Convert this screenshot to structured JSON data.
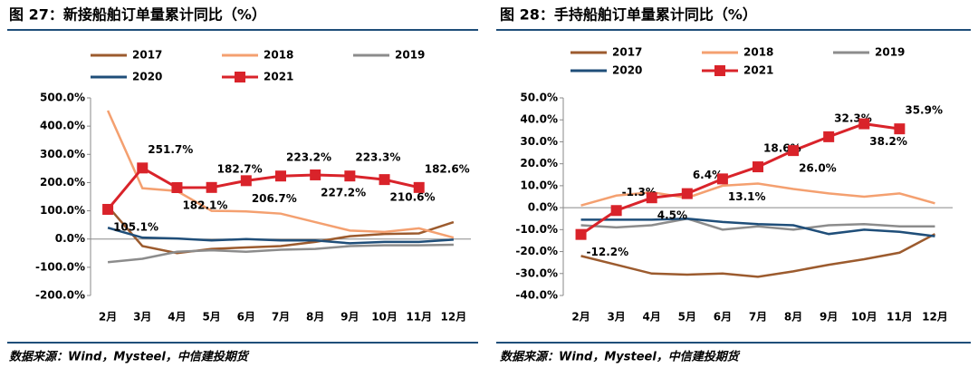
{
  "chart_data": [
    {
      "type": "line",
      "title": "图 27：新接船舶订单量累计同比（%）",
      "source": "数据来源：Wind，Mysteel，中信建投期货",
      "categories": [
        "2月",
        "3月",
        "4月",
        "5月",
        "6月",
        "7月",
        "8月",
        "9月",
        "10月",
        "11月",
        "12月"
      ],
      "ylim": [
        -200,
        500
      ],
      "yticks": [
        {
          "value": 500,
          "label": "500.0%"
        },
        {
          "value": 400,
          "label": "400.0%"
        },
        {
          "value": 300,
          "label": "300.0%"
        },
        {
          "value": 200,
          "label": "200.0%"
        },
        {
          "value": 100,
          "label": "100.0%"
        },
        {
          "value": 0,
          "label": "0.0%"
        },
        {
          "value": -100,
          "label": "-100.0%"
        },
        {
          "value": -200,
          "label": "-200.0%"
        }
      ],
      "series": [
        {
          "name": "2017",
          "color": "#9c5b2e",
          "values": [
            116,
            -25,
            -50,
            -35,
            -30,
            -25,
            -10,
            10,
            18,
            20,
            60
          ]
        },
        {
          "name": "2018",
          "color": "#f4a070",
          "values": [
            455,
            180,
            170,
            100,
            98,
            90,
            60,
            30,
            25,
            38,
            5
          ]
        },
        {
          "name": "2019",
          "color": "#8c8c8c",
          "values": [
            -82,
            -70,
            -45,
            -40,
            -45,
            -38,
            -35,
            -25,
            -22,
            -22,
            -20
          ]
        },
        {
          "name": "2020",
          "color": "#1f4e79",
          "values": [
            40,
            5,
            2,
            -5,
            0,
            -5,
            -5,
            -15,
            -10,
            -10,
            -2
          ]
        },
        {
          "name": "2021",
          "color": "#d9232a",
          "values": [
            105.1,
            251.7,
            182.1,
            182.7,
            206.7,
            223.2,
            227.2,
            223.3,
            210.6,
            182.6,
            null
          ],
          "value_labels": [
            "105.1%",
            "251.7%",
            "182.1%",
            "182.7%",
            "206.7%",
            "223.2%",
            "227.2%",
            "223.3%",
            "210.6%",
            "182.6%",
            null
          ]
        }
      ]
    },
    {
      "type": "line",
      "title": "图 28：手持船舶订单量累计同比（%）",
      "source": "数据来源：Wind，Mysteel，中信建投期货",
      "categories": [
        "2月",
        "3月",
        "4月",
        "5月",
        "6月",
        "7月",
        "8月",
        "9月",
        "10月",
        "11月",
        "12月"
      ],
      "ylim": [
        -40,
        50
      ],
      "yticks": [
        {
          "value": 50,
          "label": "50.0%"
        },
        {
          "value": 40,
          "label": "40.0%"
        },
        {
          "value": 30,
          "label": "30.0%"
        },
        {
          "value": 20,
          "label": "20.0%"
        },
        {
          "value": 10,
          "label": "10.0%"
        },
        {
          "value": 0,
          "label": "0.0%"
        },
        {
          "value": -10,
          "label": "-10.0%"
        },
        {
          "value": -20,
          "label": "-20.0%"
        },
        {
          "value": -30,
          "label": "-30.0%"
        },
        {
          "value": -40,
          "label": "-40.0%"
        }
      ],
      "series": [
        {
          "name": "2017",
          "color": "#9c5b2e",
          "values": [
            -22,
            -26,
            -30,
            -30.5,
            -30,
            -31.5,
            -29,
            -26,
            -23.5,
            -20.5,
            -12
          ]
        },
        {
          "name": "2018",
          "color": "#f4a070",
          "values": [
            1,
            5.5,
            7,
            4.5,
            10,
            11,
            8.5,
            6.5,
            5,
            6.5,
            2
          ]
        },
        {
          "name": "2019",
          "color": "#8c8c8c",
          "values": [
            -8,
            -9,
            -8,
            -5,
            -10,
            -8.5,
            -10,
            -8,
            -7.5,
            -8.5,
            -8.5
          ]
        },
        {
          "name": "2020",
          "color": "#1f4e79",
          "values": [
            -5.5,
            -5.5,
            -5.5,
            -5,
            -6.5,
            -7.5,
            -8,
            -12,
            -10,
            -11,
            -13
          ]
        },
        {
          "name": "2021",
          "color": "#d9232a",
          "values": [
            -12.2,
            -1.3,
            4.5,
            6.4,
            13.1,
            18.6,
            26.0,
            32.3,
            38.2,
            35.9,
            null
          ],
          "value_labels": [
            "-12.2%",
            "-1.3%",
            "4.5%",
            "6.4%",
            "13.1%",
            "18.6%",
            "26.0%",
            "32.3%",
            "38.2%",
            "35.9%",
            null
          ]
        }
      ]
    }
  ]
}
